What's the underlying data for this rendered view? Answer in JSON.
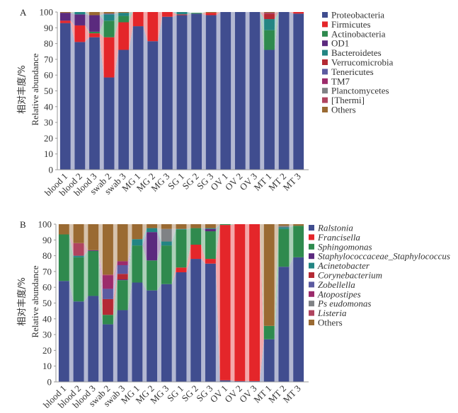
{
  "chart_data": [
    {
      "type": "bar",
      "stacked": true,
      "panel_label": "A",
      "ylabel_cn": "相对丰度/%",
      "ylabel_en": "Relative abundance",
      "ylim": [
        0,
        100
      ],
      "yticks": [
        0,
        10,
        20,
        30,
        40,
        50,
        60,
        70,
        80,
        90,
        100
      ],
      "legend_position": "right",
      "legend_italic": false,
      "categories": [
        "blood 1",
        "blood 2",
        "blood 3",
        "swab 2",
        "swab 3",
        "MG 1",
        "MG 2",
        "MG 3",
        "SG 1",
        "SG 2",
        "SG 3",
        "OV 1",
        "OV 2",
        "OV 3",
        "MT 1",
        "MT 2",
        "MT 3"
      ],
      "series": [
        {
          "name": "Proteobacteria",
          "color": "#404d8f",
          "values": [
            93,
            81,
            84,
            58.5,
            76,
            91,
            81.5,
            97,
            98,
            99,
            98,
            100,
            100,
            100,
            76,
            100,
            99
          ]
        },
        {
          "name": "Firmicutes",
          "color": "#e4262a",
          "values": [
            1.5,
            10.5,
            2.5,
            25.5,
            17.5,
            9,
            18.5,
            3,
            0.5,
            0,
            1.5,
            0,
            0,
            0,
            0,
            0,
            1
          ]
        },
        {
          "name": "Actinobacteria",
          "color": "#2f8a4e",
          "values": [
            0,
            0,
            1,
            10.5,
            4,
            0,
            0,
            0,
            0,
            0.5,
            0,
            0,
            0,
            0,
            12.5,
            0,
            0
          ]
        },
        {
          "name": "OD1",
          "color": "#5b2a7e",
          "values": [
            5,
            7,
            10.5,
            0,
            0,
            0,
            0,
            0,
            0,
            0,
            0,
            0,
            0,
            0,
            0,
            0,
            0
          ]
        },
        {
          "name": "Bacteroidetes",
          "color": "#238583",
          "values": [
            0,
            1.5,
            0,
            4,
            2,
            0,
            0,
            0,
            1.5,
            0,
            0,
            0,
            0,
            0,
            7,
            0,
            0
          ]
        },
        {
          "name": "Verrucomicrobia",
          "color": "#b42a34",
          "values": [
            0,
            0,
            0,
            0,
            0,
            0,
            0,
            0,
            0,
            0,
            0,
            0,
            0,
            0,
            3.5,
            0,
            0
          ]
        },
        {
          "name": "Tenericutes",
          "color": "#5c5ba1",
          "values": [
            0,
            0,
            0,
            0.5,
            0,
            0,
            0,
            0,
            0,
            0,
            0,
            0,
            0,
            0,
            0,
            0,
            0
          ]
        },
        {
          "name": "TM7",
          "color": "#9c2b6b",
          "values": [
            0,
            0,
            0,
            0,
            0,
            0,
            0,
            0,
            0,
            0,
            0,
            0,
            0,
            0,
            0.5,
            0,
            0
          ]
        },
        {
          "name": "Planctomycetes",
          "color": "#808285",
          "values": [
            0,
            0,
            0,
            0,
            0,
            0,
            0,
            0,
            0,
            0,
            0,
            0,
            0,
            0,
            0,
            0,
            0
          ]
        },
        {
          "name": "[Thermi]",
          "color": "#b0445f",
          "values": [
            0,
            0,
            0,
            0,
            0,
            0,
            0,
            0,
            0,
            0,
            0,
            0,
            0,
            0,
            0,
            0,
            0
          ]
        },
        {
          "name": "Others",
          "color": "#9a6a32",
          "values": [
            0.5,
            0,
            2,
            1,
            0.5,
            0,
            0,
            0,
            0,
            0,
            0.5,
            0,
            0,
            0,
            0.5,
            0,
            0
          ]
        }
      ]
    },
    {
      "type": "bar",
      "stacked": true,
      "panel_label": "B",
      "ylabel_cn": "相对丰度/%",
      "ylabel_en": "Relative abundance",
      "ylim": [
        0,
        100
      ],
      "yticks": [
        0,
        10,
        20,
        30,
        40,
        50,
        60,
        70,
        80,
        90,
        100
      ],
      "legend_position": "right",
      "legend_italic": true,
      "categories": [
        "blood 1",
        "blood 2",
        "blood 3",
        "swab 2",
        "swab 3",
        "MG 1",
        "MG 2",
        "MG 3",
        "SG 1",
        "SG 2",
        "SG 3",
        "OV 1",
        "OV 2",
        "OV 3",
        "MT 1",
        "MT 2",
        "MT 3"
      ],
      "series": [
        {
          "name": "Ralstonia",
          "color": "#404d8f",
          "values": [
            64,
            51,
            54.5,
            36.5,
            45.5,
            63,
            58,
            62,
            69.5,
            78,
            75,
            1,
            0.5,
            0.5,
            27,
            73,
            79
          ]
        },
        {
          "name": "Francisella",
          "color": "#e4262a",
          "values": [
            0,
            0,
            0,
            0,
            0,
            0,
            0,
            0,
            3,
            9,
            3,
            98.5,
            99.5,
            99.5,
            0,
            0,
            0
          ]
        },
        {
          "name": "Sphingomonas",
          "color": "#2f8a4e",
          "values": [
            29.5,
            28,
            28.5,
            6,
            19,
            23.5,
            19,
            24.5,
            24,
            10.5,
            17.5,
            0.5,
            0,
            0,
            8.5,
            24,
            20
          ]
        },
        {
          "name": "Staphylococcaceae_Staphylococcus",
          "color": "#5b2a7e",
          "values": [
            0,
            0,
            0.5,
            0,
            0.5,
            0,
            18,
            0,
            0,
            0,
            1.5,
            0,
            0,
            0,
            0,
            0,
            0
          ]
        },
        {
          "name": "Acinetobacter",
          "color": "#238583",
          "values": [
            0,
            1,
            0,
            0,
            0,
            4,
            2.5,
            2.5,
            0.5,
            0,
            0.5,
            0,
            0,
            0,
            0,
            1,
            0
          ]
        },
        {
          "name": "Corynebacterium",
          "color": "#b42a34",
          "values": [
            0,
            0,
            0,
            10,
            3.5,
            0,
            0,
            0,
            0,
            0,
            0,
            0,
            0,
            0,
            0,
            0,
            0
          ]
        },
        {
          "name": "Zobellella",
          "color": "#5c5ba1",
          "values": [
            0,
            0,
            0,
            6.5,
            5.5,
            0,
            0,
            0,
            0,
            0,
            0,
            0,
            0,
            0,
            0,
            0,
            0
          ]
        },
        {
          "name": "Atopostipes",
          "color": "#9c2b6b",
          "values": [
            0,
            0,
            0,
            8.5,
            2.5,
            0,
            0,
            0,
            0,
            0,
            0,
            0,
            0,
            0,
            0,
            0,
            0
          ]
        },
        {
          "name": "Ps eudomonas",
          "color": "#808285",
          "values": [
            0,
            0,
            0,
            0,
            0,
            0,
            0,
            8,
            0,
            0,
            0,
            0,
            0,
            0,
            0,
            1,
            0
          ]
        },
        {
          "name": "Listeria",
          "color": "#b0445f",
          "values": [
            0,
            8,
            0,
            0.5,
            0,
            0,
            0,
            0,
            0,
            0,
            0,
            0,
            0,
            0,
            0,
            0,
            0
          ]
        },
        {
          "name": "Others",
          "color": "#9a6a32",
          "values": [
            6.5,
            12,
            16.5,
            32,
            23.5,
            9.5,
            2.5,
            3,
            3,
            2.5,
            2.5,
            0,
            0,
            0,
            64.5,
            1,
            1
          ]
        }
      ]
    }
  ]
}
